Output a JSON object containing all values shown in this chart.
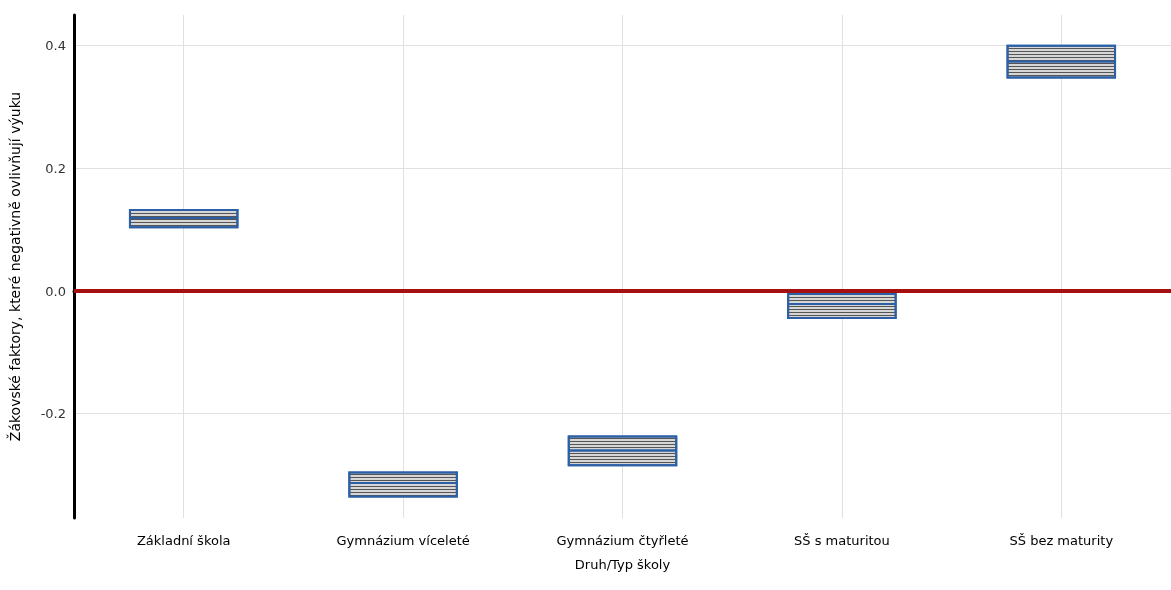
{
  "chart_data": {
    "type": "box",
    "xlabel": "Druh/Typ školy",
    "ylabel": "Žákovské faktory, které negativně ovlivňují výuku",
    "categories": [
      "Základní škola",
      "Gymnázium víceleté",
      "Gymnázium čtyřleté",
      "SŠ s maturitou",
      "SŠ bez maturity"
    ],
    "series": [
      {
        "color": "#2b5fa6",
        "boxes": [
          {
            "low": 0.104,
            "q1": 0.104,
            "median": 0.119,
            "q3": 0.132,
            "high": 0.132
          },
          {
            "low": -0.335,
            "q1": -0.335,
            "median": -0.313,
            "q3": -0.296,
            "high": -0.296
          },
          {
            "low": -0.284,
            "q1": -0.284,
            "median": -0.26,
            "q3": -0.237,
            "high": -0.237
          },
          {
            "low": -0.044,
            "q1": -0.044,
            "median": -0.021,
            "q3": -0.005,
            "high": -0.005
          },
          {
            "low": 0.348,
            "q1": 0.348,
            "median": 0.374,
            "q3": 0.4,
            "high": 0.4
          }
        ]
      }
    ],
    "ylim": [
      -0.37,
      0.45
    ],
    "yticks": [
      -0.2,
      {
        "value": 0,
        "label": "0.0"
      },
      0.2,
      0.4
    ],
    "ref_lines": [
      {
        "axis": "y",
        "value": 0,
        "color": "#a50f0f"
      }
    ],
    "grid": true
  }
}
